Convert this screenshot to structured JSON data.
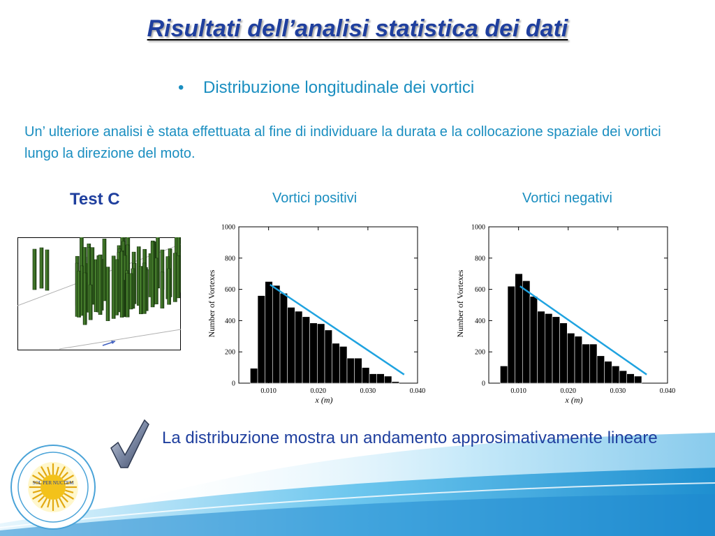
{
  "slide": {
    "title": "Risultati dell’analisi statistica dei dati",
    "bullet": "Distribuzione longitudinale dei vortici",
    "intro": "Un’ ulteriore analisi è stata effettuata al fine di individuare la durata e la collocazione spaziale dei vortici lungo la direzione del moto.",
    "test_label": "Test C",
    "conclusion": "La distribuzione mostra un andamento approsimativamente lineare",
    "logo_text": "SOL PER NUCTEM",
    "colors": {
      "title": "#1f3f9e",
      "text": "#1a8ec0",
      "bars": "#000000",
      "trend_line": "#1fa3e0"
    },
    "icons": [
      "checkmark-icon",
      "university-seal-logo",
      "wave-decoration"
    ]
  },
  "chart_data": [
    {
      "type": "bar",
      "title": "Vortici positivi",
      "xlabel": "x (m)",
      "ylabel": "Number of Vortexes",
      "xlim": [
        0.004,
        0.04
      ],
      "ylim": [
        0,
        1000
      ],
      "x_ticks": [
        0.01,
        0.02,
        0.03,
        0.04
      ],
      "x_tick_labels": [
        "0.010",
        "0.020",
        "0.030",
        "0.040"
      ],
      "y_ticks": [
        0,
        200,
        400,
        600,
        800,
        1000
      ],
      "bin_width": 0.0015,
      "bin_start": 0.0063,
      "values": [
        95,
        560,
        650,
        625,
        575,
        485,
        460,
        425,
        385,
        380,
        340,
        255,
        235,
        160,
        160,
        100,
        60,
        60,
        45,
        10
      ],
      "trend_line": {
        "x": [
          0.0103,
          0.0373
        ],
        "y": [
          630,
          55
        ]
      },
      "grid": false,
      "legend": "none"
    },
    {
      "type": "bar",
      "title": "Vortici negativi",
      "xlabel": "x (m)",
      "ylabel": "Number of Vortexes",
      "xlim": [
        0.004,
        0.04
      ],
      "ylim": [
        0,
        1000
      ],
      "x_ticks": [
        0.01,
        0.02,
        0.03,
        0.04
      ],
      "x_tick_labels": [
        "0.010",
        "0.020",
        "0.030",
        "0.040"
      ],
      "y_ticks": [
        0,
        200,
        400,
        600,
        800,
        1000
      ],
      "bin_width": 0.0015,
      "bin_start": 0.0063,
      "values": [
        110,
        620,
        700,
        655,
        555,
        460,
        445,
        425,
        385,
        320,
        300,
        250,
        250,
        175,
        140,
        110,
        80,
        60,
        45
      ],
      "trend_line": {
        "x": [
          0.0103,
          0.0358
        ],
        "y": [
          620,
          55
        ]
      },
      "grid": false,
      "legend": "none"
    }
  ]
}
